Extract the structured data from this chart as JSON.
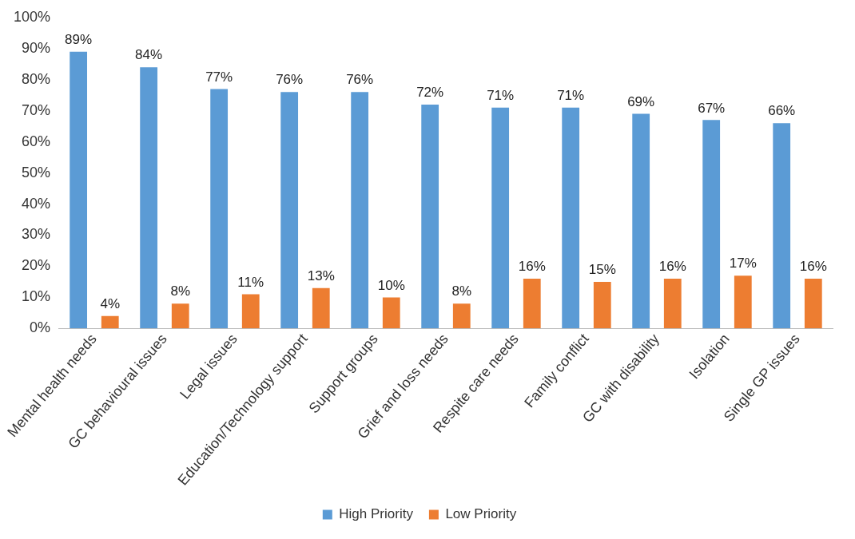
{
  "chart_data": {
    "type": "bar",
    "categories": [
      "Mental health needs",
      "GC behavioural issues",
      "Legal issues",
      "Education/Technology support",
      "Support groups",
      "Grief and loss needs",
      "Respite care needs",
      "Family conflict",
      "GC with disability",
      "Isolation",
      "Single GP issues"
    ],
    "series": [
      {
        "name": "High Priority",
        "color": "#5b9bd5",
        "values": [
          89,
          84,
          77,
          76,
          76,
          72,
          71,
          71,
          69,
          67,
          66
        ],
        "value_labels": [
          "89%",
          "84%",
          "77%",
          "76%",
          "76%",
          "72%",
          "71%",
          "71%",
          "69%",
          "67%",
          "66%"
        ]
      },
      {
        "name": "Low Priority",
        "color": "#ed7d31",
        "values": [
          4,
          8,
          11,
          13,
          10,
          8,
          16,
          15,
          16,
          17,
          16
        ],
        "value_labels": [
          "4%",
          "8%",
          "11%",
          "13%",
          "10%",
          "8%",
          "16%",
          "15%",
          "16%",
          "17%",
          "16%"
        ]
      }
    ],
    "ylim": [
      0,
      100
    ],
    "yticks": [
      {
        "value": 0,
        "label": "0%"
      },
      {
        "value": 10,
        "label": "10%"
      },
      {
        "value": 20,
        "label": "20%"
      },
      {
        "value": 30,
        "label": "30%"
      },
      {
        "value": 40,
        "label": "40%"
      },
      {
        "value": 50,
        "label": "50%"
      },
      {
        "value": 60,
        "label": "60%"
      },
      {
        "value": 70,
        "label": "70%"
      },
      {
        "value": 80,
        "label": "80%"
      },
      {
        "value": 90,
        "label": "90%"
      },
      {
        "value": 100,
        "label": "100%"
      }
    ],
    "legend": "bottom"
  }
}
